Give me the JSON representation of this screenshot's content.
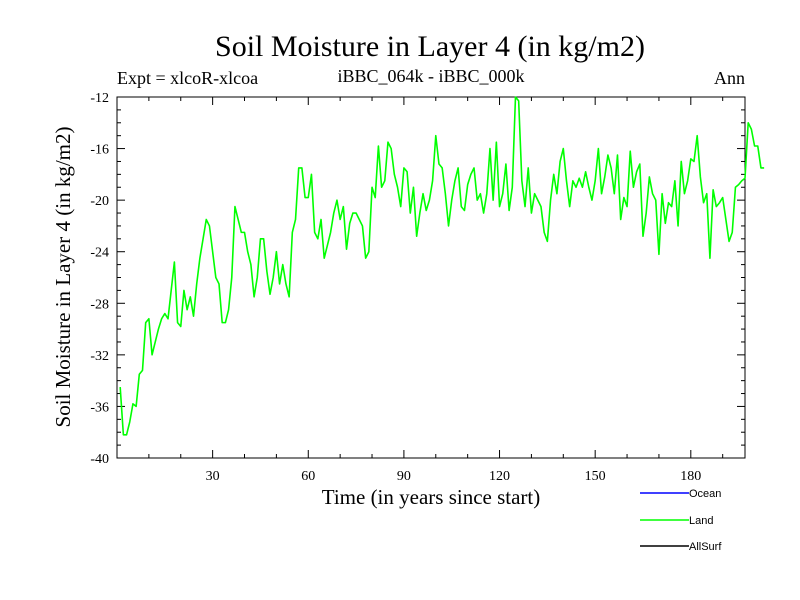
{
  "chart_data": {
    "type": "line",
    "title": "Soil Moisture in Layer 4 (in kg/m2)",
    "subtitle_left": "Expt = xlcoR-xlcoa",
    "subtitle_center": "iBBC_064k - iBBC_000k",
    "subtitle_right": "Ann",
    "xlabel": "Time (in years since start)",
    "ylabel": "Soil Moisture in Layer 4 (in kg/m2)",
    "xlim": [
      0,
      197
    ],
    "ylim": [
      -40,
      -12
    ],
    "xticks": [
      30,
      60,
      90,
      120,
      150,
      180
    ],
    "yticks": [
      -12,
      -16,
      -20,
      -24,
      -28,
      -32,
      -36,
      -40
    ],
    "legend_position": "bottom-right",
    "series": [
      {
        "name": "Ocean",
        "color": "#0000ff",
        "values": []
      },
      {
        "name": "Land",
        "color": "#00ff00",
        "values": [
          -34.5,
          -38.2,
          -38.2,
          -37.2,
          -35.8,
          -36.0,
          -33.5,
          -33.2,
          -29.5,
          -29.2,
          -32.0,
          -31.0,
          -30.0,
          -29.2,
          -28.8,
          -29.2,
          -27.0,
          -24.8,
          -29.5,
          -29.8,
          -27.0,
          -28.5,
          -27.5,
          -29.0,
          -26.5,
          -24.5,
          -23.0,
          -21.5,
          -22.0,
          -24.0,
          -26.0,
          -26.5,
          -29.5,
          -29.5,
          -28.5,
          -26.0,
          -20.5,
          -21.5,
          -22.5,
          -22.5,
          -24.0,
          -25.0,
          -27.5,
          -26.0,
          -23.0,
          -23.0,
          -25.5,
          -27.3,
          -26.0,
          -24.0,
          -26.5,
          -25.0,
          -26.5,
          -27.5,
          -22.5,
          -21.5,
          -17.5,
          -17.5,
          -19.8,
          -19.8,
          -18.0,
          -22.5,
          -23.0,
          -21.5,
          -24.5,
          -23.5,
          -22.5,
          -21.0,
          -20.0,
          -21.5,
          -20.5,
          -23.8,
          -21.8,
          -21.0,
          -21.0,
          -21.5,
          -22.0,
          -24.5,
          -24.0,
          -19.0,
          -19.8,
          -15.8,
          -19.0,
          -18.5,
          -15.5,
          -16.0,
          -18.0,
          -19.0,
          -20.5,
          -17.5,
          -17.8,
          -21.0,
          -19.0,
          -22.8,
          -21.0,
          -19.5,
          -20.8,
          -20.0,
          -18.5,
          -15.0,
          -17.2,
          -17.5,
          -19.5,
          -22.0,
          -20.0,
          -18.5,
          -17.5,
          -20.5,
          -20.8,
          -18.8,
          -18.0,
          -17.5,
          -20.0,
          -19.5,
          -21.0,
          -19.5,
          -16.0,
          -20.0,
          -15.5,
          -20.5,
          -19.5,
          -17.2,
          -20.8,
          -19.0,
          -12.0,
          -12.3,
          -18.5,
          -20.5,
          -17.5,
          -21.0,
          -19.5,
          -20.0,
          -20.5,
          -22.5,
          -23.2,
          -20.0,
          -18.0,
          -19.5,
          -17.0,
          -16.0,
          -18.5,
          -20.5,
          -18.5,
          -19.0,
          -18.3,
          -19.0,
          -17.8,
          -19.0,
          -20.0,
          -18.5,
          -16.0,
          -19.5,
          -18.2,
          -16.5,
          -17.5,
          -19.5,
          -16.5,
          -21.5,
          -19.8,
          -20.5,
          -16.2,
          -19.0,
          -17.8,
          -17.2,
          -22.8,
          -21.0,
          -18.2,
          -19.5,
          -20.0,
          -24.2,
          -19.5,
          -21.8,
          -20.2,
          -20.5,
          -18.5,
          -22.0,
          -17.0,
          -19.5,
          -18.5,
          -16.8,
          -17.0,
          -15.0,
          -18.2,
          -20.2,
          -19.5,
          -24.5,
          -19.2,
          -20.5,
          -20.2,
          -19.8,
          -21.5,
          -23.2,
          -22.5,
          -19.0,
          -18.8,
          -18.5,
          -18.3,
          -14.0,
          -14.5,
          -15.8,
          -15.8,
          -17.5,
          -17.5
        ]
      },
      {
        "name": "AllSurf",
        "color": "#000000",
        "values": []
      }
    ]
  }
}
